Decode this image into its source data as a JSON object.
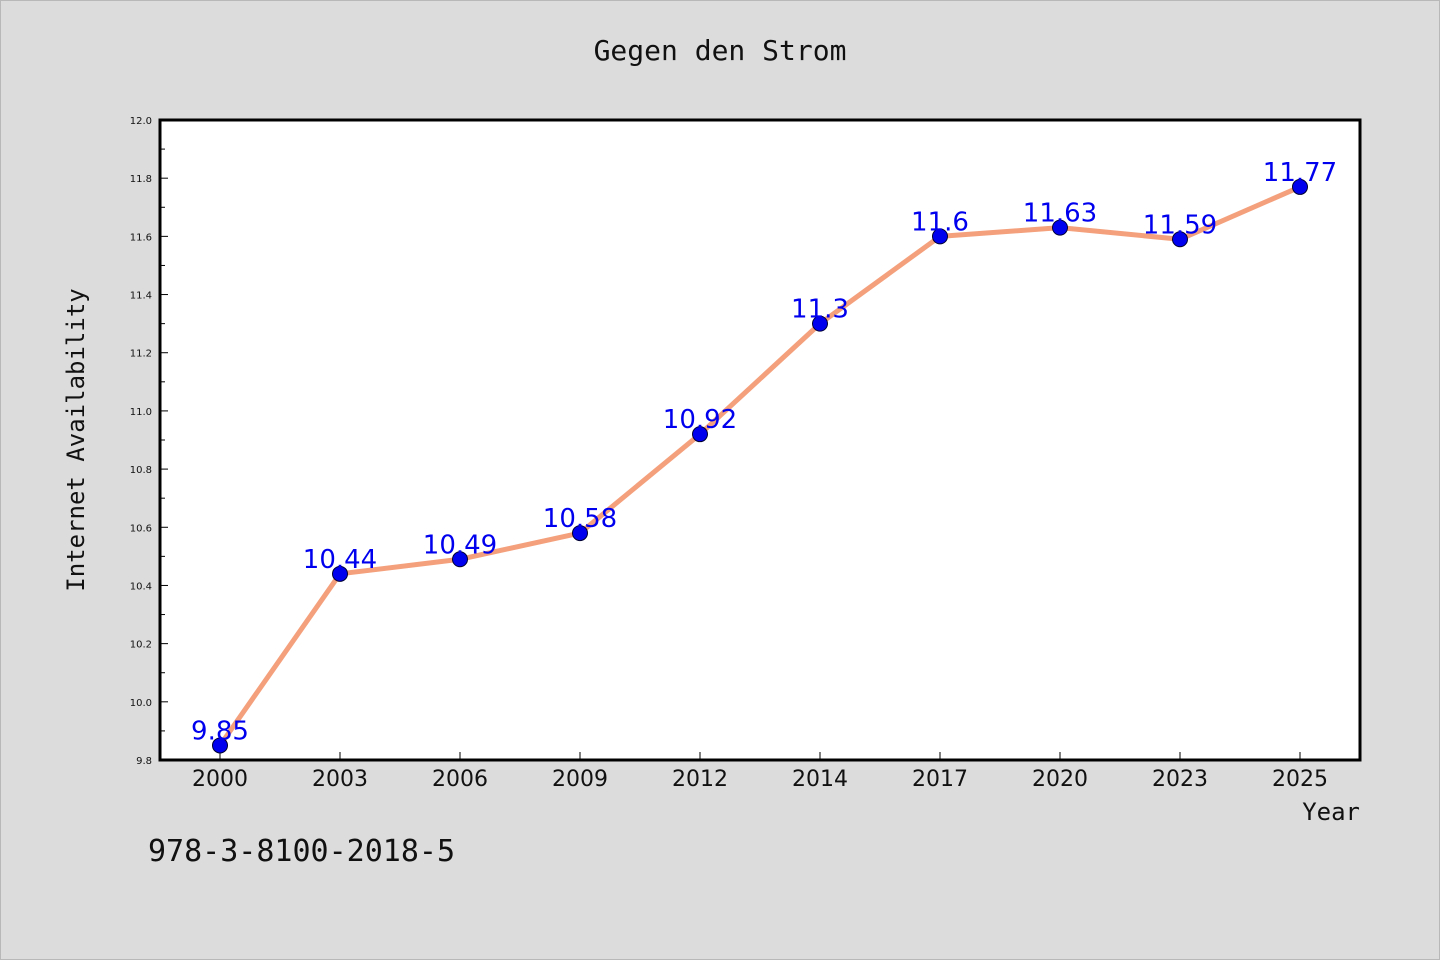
{
  "title": "Gegen den Strom",
  "footer_code": "978-3-8100-2018-5",
  "chart_data": {
    "type": "line",
    "title": "Gegen den Strom",
    "xlabel": "Year",
    "ylabel": "Internet Availability",
    "categories": [
      "2000",
      "2003",
      "2006",
      "2009",
      "2012",
      "2014",
      "2017",
      "2020",
      "2023",
      "2025"
    ],
    "series": [
      {
        "values": [
          9.85,
          10.44,
          10.49,
          10.58,
          10.92,
          11.3,
          11.6,
          11.63,
          11.59,
          11.77
        ]
      }
    ],
    "data_labels": [
      "9.85",
      "10.44",
      "10.49",
      "10.58",
      "10.92",
      "11.3",
      "11.6",
      "11.63",
      "11.59",
      "11.77"
    ],
    "ylim": [
      9.8,
      12.0
    ],
    "yticks": [
      "9.8",
      "10.0",
      "10.2",
      "10.4",
      "10.6",
      "10.8",
      "11.0",
      "11.2",
      "11.4",
      "11.6",
      "11.8",
      "12.0"
    ],
    "grid": false,
    "legend": "none",
    "colors": {
      "line": "#f4a07c",
      "marker": "#0000ee",
      "data_label": "#0000ee",
      "background": "#dcdcdc",
      "plot_area": "#ffffff"
    }
  }
}
